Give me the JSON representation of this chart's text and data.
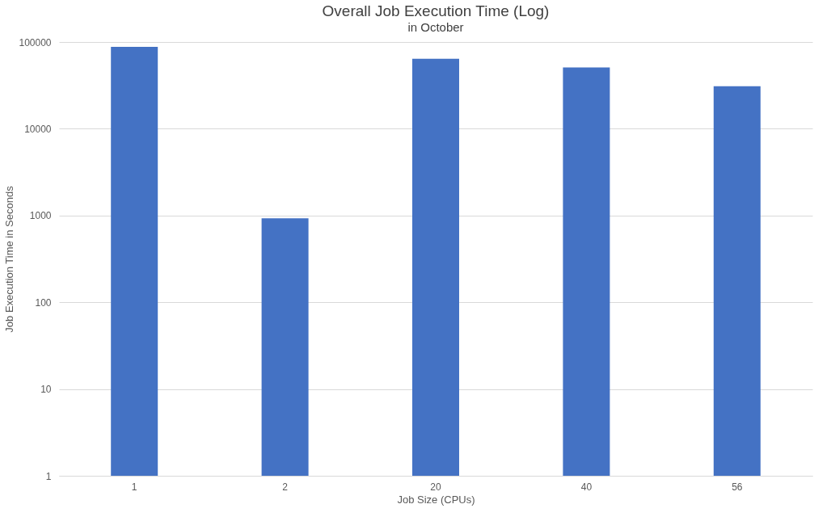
{
  "chart_data": {
    "type": "bar",
    "title": "Overall Job Execution Time (Log)",
    "subtitle": "in October",
    "xlabel": "Job Size (CPUs)",
    "ylabel": "Job Execution Time in Seconds",
    "categories": [
      "1",
      "2",
      "20",
      "40",
      "56"
    ],
    "values": [
      88000,
      930,
      64000,
      51000,
      31000
    ],
    "color": "#4472c4",
    "log": true,
    "ylim": [
      1,
      100000
    ],
    "yticks": [
      1,
      10,
      100,
      1000,
      10000,
      100000
    ],
    "grid": "y"
  }
}
